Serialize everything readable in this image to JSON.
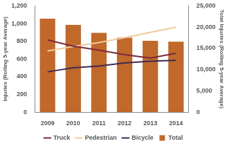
{
  "chart_data": {
    "type": "bar",
    "categories": [
      "2009",
      "2010",
      "2011",
      "2012",
      "2013",
      "2014"
    ],
    "series": [
      {
        "name": "Total",
        "type": "bar",
        "color": "#c0692b",
        "axis": "y2",
        "values": [
          21980,
          20500,
          18650,
          17500,
          16770,
          16560
        ]
      },
      {
        "name": "Truck",
        "type": "line",
        "color": "#7b2a3a",
        "values": [
          815,
          745,
          700,
          650,
          610,
          665
        ]
      },
      {
        "name": "Pedestrian",
        "type": "line",
        "color": "#f0c99a",
        "values": [
          690,
          740,
          785,
          840,
          900,
          960
        ]
      },
      {
        "name": "Bicycle",
        "type": "line",
        "color": "#3d2a4f",
        "values": [
          455,
          500,
          520,
          555,
          575,
          585
        ]
      }
    ],
    "ylabel": "Injuries (Rolling 5-year Average)",
    "y2label": "Total Injuries (Rolling 5-year Average)",
    "ylim": [
      0,
      1200
    ],
    "yticks": [
      0,
      200,
      400,
      600,
      800,
      {
        "value": 1000,
        "label": "1,000"
      },
      {
        "value": 1200,
        "label": "1,200"
      }
    ],
    "y2lim": [
      0,
      25000
    ],
    "y2ticks": [
      0,
      {
        "value": 5000,
        "label": "5,000"
      },
      {
        "value": 10000,
        "label": "10,000"
      },
      {
        "value": 15000,
        "label": "15,000"
      },
      {
        "value": 20000,
        "label": "20,000"
      },
      {
        "value": 25000,
        "label": "25,000"
      }
    ],
    "grid": false,
    "legend": "bottom"
  }
}
